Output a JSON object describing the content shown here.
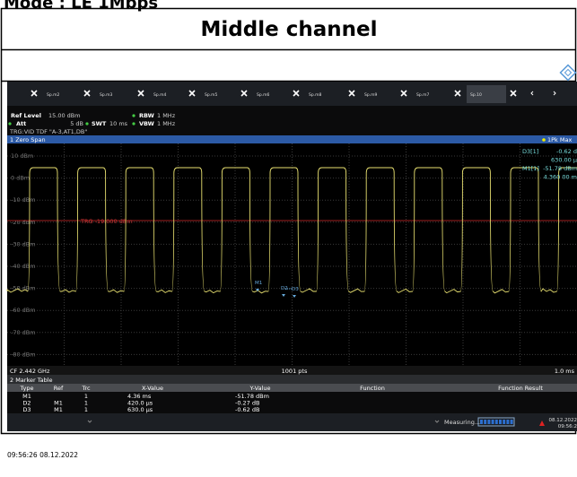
{
  "document_title": "Mode : LE 1Mbps",
  "table": {
    "header": "Middle channel"
  },
  "screenshot": {
    "tabs": [
      "Sp.m2",
      "Sp.m3",
      "Sp.m4",
      "Sp.m5",
      "Sp.m6",
      "Sp.m8",
      "Sp.m9",
      "Sp.m7",
      "Sp.10"
    ],
    "settings": {
      "ref_level": "Ref Level",
      "ref_level_value": "15.00 dBm",
      "rbw": "RBW",
      "rbw_value": "1 MHz",
      "att": "Att",
      "att_value": "5 dB",
      "swt": "SWT",
      "swt_value": "10 ms",
      "vbw": "VBW",
      "vbw_value": "1 MHz",
      "trigger": "TRG:VID TDF \"A-3,AT1,DB\""
    },
    "window_title": "1 Zero Span",
    "trace_mode": "1Pk Max",
    "y_labels": [
      "10 dBm",
      "0 dBm",
      "-10 dBm",
      "-20 dBm",
      "-30 dBm",
      "-40 dBm",
      "-50 dBm",
      "-60 dBm",
      "-70 dBm",
      "-80 dBm"
    ],
    "trigger_label": "TRG -19.000 dBm",
    "markers": [
      "M1",
      "D2",
      "D3"
    ],
    "marker_info": [
      {
        "label": "D3[1]",
        "value": "-0.62 d"
      },
      {
        "value": "630.00 µ"
      },
      {
        "label": "M1[1]",
        "value": "-51.78 dBm"
      },
      {
        "value": "4.360 00 m"
      }
    ],
    "footer": {
      "center_freq": "CF 2.442 GHz",
      "points": "1001 pts",
      "scale": "1.0 ms"
    },
    "marker_table": {
      "title": "2 Marker Table",
      "columns": [
        "Type",
        "Ref",
        "Trc",
        "X-Value",
        "Y-Value",
        "Function",
        "Function Result"
      ],
      "rows": [
        {
          "type": "M1",
          "trc": "1",
          "x": "4.36 ms",
          "y": "-51.78 dBm"
        },
        {
          "type": "D2",
          "ref": "M1",
          "trc": "1",
          "x": "420.0 µs",
          "y": "-0.27 dB"
        },
        {
          "type": "D3",
          "ref": "M1",
          "trc": "1",
          "x": "630.0 µs",
          "y": "-0.62 dB"
        }
      ]
    },
    "status": {
      "measuring": "Measuring...",
      "date": "08.12.2022",
      "time": "09:56:2"
    }
  },
  "timestamp": "09:56:26 08.12.2022"
}
